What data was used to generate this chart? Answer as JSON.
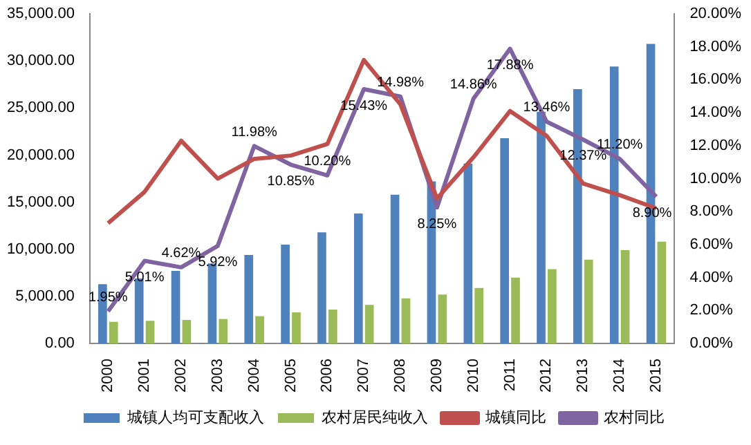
{
  "chart_data": {
    "type": "bar",
    "categories": [
      "2000",
      "2001",
      "2002",
      "2003",
      "2004",
      "2005",
      "2006",
      "2007",
      "2008",
      "2009",
      "2010",
      "2011",
      "2012",
      "2013",
      "2014",
      "2015"
    ],
    "series": [
      {
        "name": "城镇人均可支配收入",
        "color": "#4f81bd",
        "values": [
          6300,
          6900,
          7700,
          8500,
          9400,
          10500,
          11800,
          13800,
          15800,
          17200,
          19100,
          21800,
          24600,
          27000,
          29400,
          31800
        ]
      },
      {
        "name": "农村居民纯收入",
        "color": "#9bbb59",
        "values": [
          2300,
          2400,
          2500,
          2600,
          2900,
          3300,
          3600,
          4100,
          4800,
          5200,
          5900,
          7000,
          7900,
          8900,
          9900,
          10800
        ]
      },
      {
        "name": "城镇同比",
        "type": "line",
        "axis": "y2",
        "color": "#c0504d",
        "values": [
          7.3,
          9.2,
          12.3,
          10.0,
          11.2,
          11.4,
          12.1,
          17.2,
          14.5,
          8.8,
          11.3,
          14.1,
          12.6,
          9.7,
          9.0,
          8.2
        ]
      },
      {
        "name": "农村同比",
        "type": "line",
        "axis": "y2",
        "color": "#8064a2",
        "values": [
          1.95,
          5.01,
          4.62,
          5.92,
          11.98,
          10.85,
          10.2,
          15.43,
          14.98,
          8.25,
          14.86,
          17.88,
          13.46,
          12.37,
          11.2,
          8.9
        ],
        "value_labels": [
          "1.95%",
          "5.01%",
          "4.62%",
          "5.92%",
          "11.98%",
          "10.85%",
          "10.20%",
          "15.43%",
          "14.98%",
          "8.25%",
          "14.86%",
          "17.88%",
          "13.46%",
          "12.37%",
          "11.20%",
          "8.90%"
        ]
      }
    ],
    "ylim": [
      0,
      35000
    ],
    "yticks": [
      {
        "value": 0,
        "label": "0.00"
      },
      {
        "value": 5000,
        "label": "5,000.00"
      },
      {
        "value": 10000,
        "label": "10,000.00"
      },
      {
        "value": 15000,
        "label": "15,000.00"
      },
      {
        "value": 20000,
        "label": "20,000.00"
      },
      {
        "value": 25000,
        "label": "25,000.00"
      },
      {
        "value": 30000,
        "label": "30,000.00"
      },
      {
        "value": 35000,
        "label": "35,000.00"
      }
    ],
    "y2lim": [
      0,
      20
    ],
    "y2ticks": [
      {
        "value": 0,
        "label": "0.00%"
      },
      {
        "value": 2,
        "label": "2.00%"
      },
      {
        "value": 4,
        "label": "4.00%"
      },
      {
        "value": 6,
        "label": "6.00%"
      },
      {
        "value": 8,
        "label": "8.00%"
      },
      {
        "value": 10,
        "label": "10.00%"
      },
      {
        "value": 12,
        "label": "12.00%"
      },
      {
        "value": 14,
        "label": "14.00%"
      },
      {
        "value": 16,
        "label": "16.00%"
      },
      {
        "value": 18,
        "label": "18.00%"
      },
      {
        "value": 20,
        "label": "20.00%"
      }
    ],
    "grid": false,
    "legend": "bottom",
    "marker": "none",
    "line_style": "solid"
  }
}
